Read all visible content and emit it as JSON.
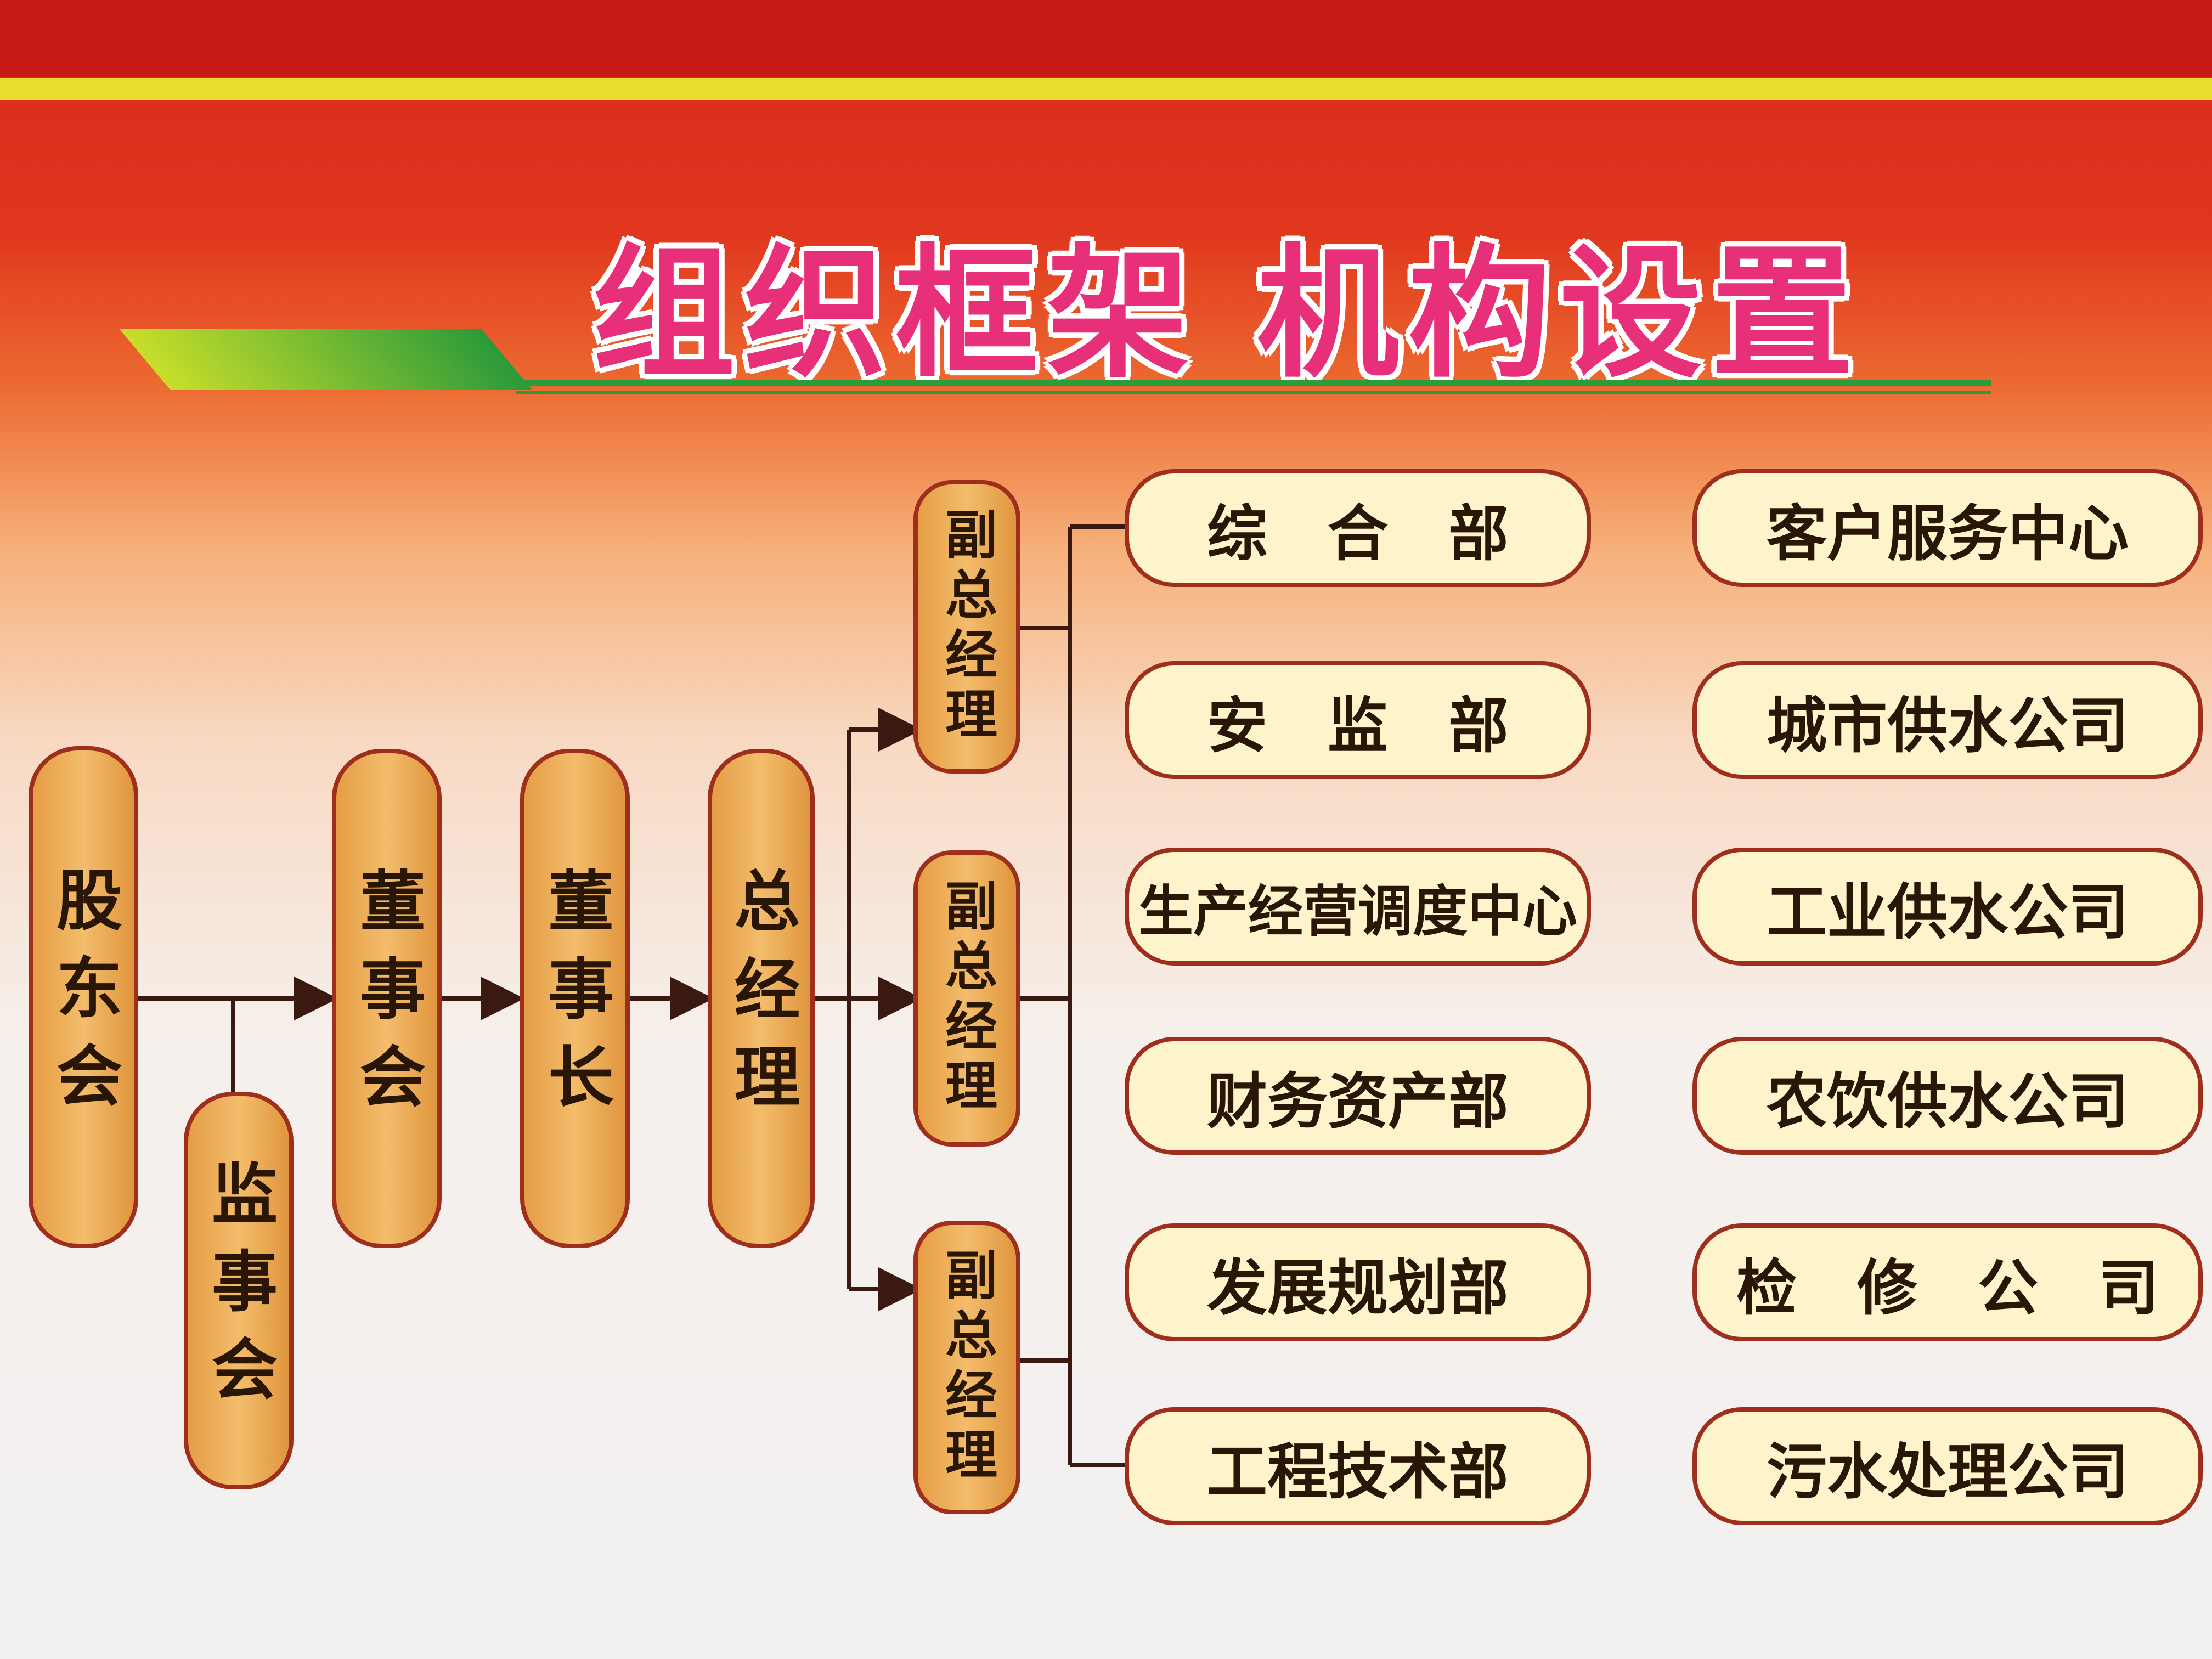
{
  "title": "组织框架 机构设置",
  "chain": {
    "shareholders": "股东会",
    "supervisors": "监事会",
    "board": "董事会",
    "chairman": "董事长",
    "general_manager": "总经理"
  },
  "deputy_managers": [
    "副总经理",
    "副总经理",
    "副总经理"
  ],
  "departments": [
    "综　合　部",
    "安　监　部",
    "生产经营调度中心",
    "财务资产部",
    "发展规划部",
    "工程技术部"
  ],
  "subsidiaries": [
    "客户服务中心",
    "城市供水公司",
    "工业供水公司",
    "农饮供水公司",
    "检　修　公　司",
    "污水处理公司"
  ],
  "colors": {
    "pill_fill": "#f3bd6c",
    "box_fill": "#fdf4cc",
    "border": "#9e2f1c",
    "title": "#e8307a"
  }
}
